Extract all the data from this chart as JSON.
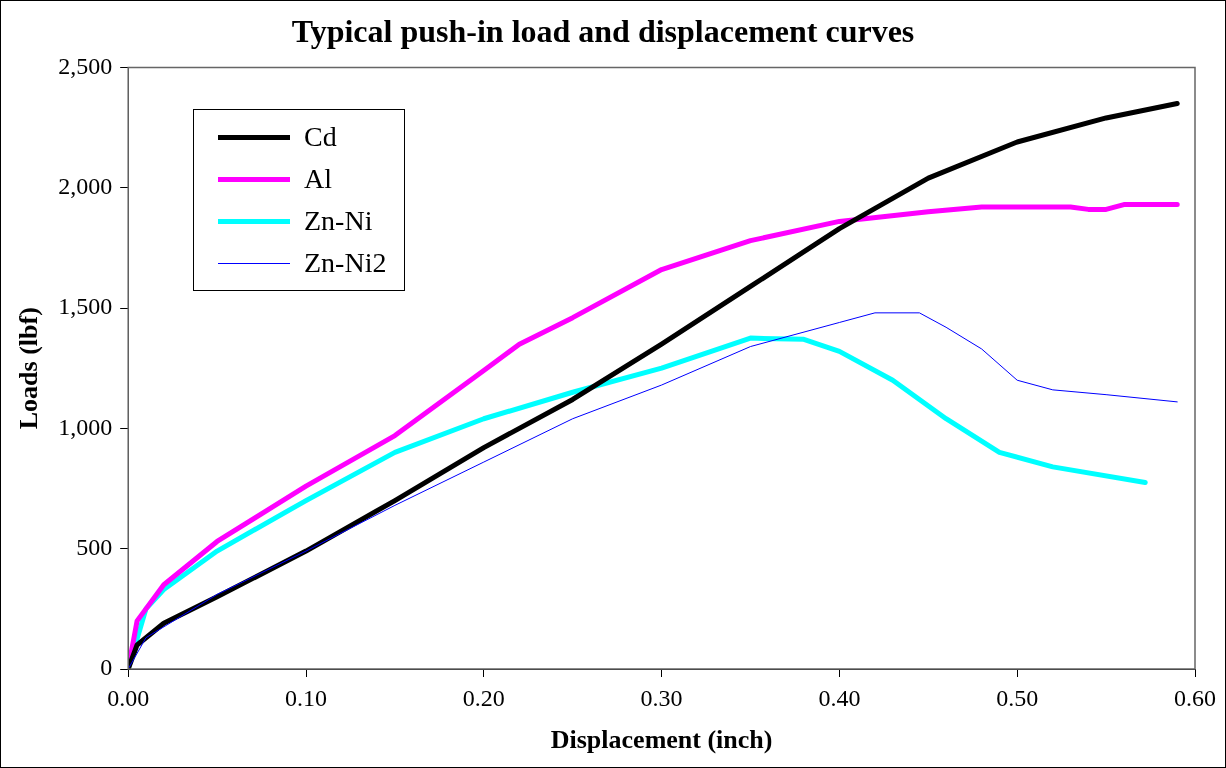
{
  "chart_data": {
    "type": "line",
    "title": "Typical push-in load and displacement curves",
    "xlabel": "Displacement (inch)",
    "ylabel": "Loads (lbf)",
    "xlim": [
      0,
      0.6
    ],
    "xticks": [
      {
        "value": 0,
        "label": "0.00"
      },
      {
        "value": 0.1,
        "label": "0.10"
      },
      {
        "value": 0.2,
        "label": "0.20"
      },
      {
        "value": 0.3,
        "label": "0.30"
      },
      {
        "value": 0.4,
        "label": "0.40"
      },
      {
        "value": 0.5,
        "label": "0.50"
      },
      {
        "value": 0.6,
        "label": "0.60"
      }
    ],
    "ylim": [
      0,
      2500
    ],
    "yticks": [
      0,
      500,
      {
        "value": 1000,
        "label": "1,000"
      },
      {
        "value": 1500,
        "label": "1,500"
      },
      {
        "value": 2000,
        "label": "2,000"
      },
      {
        "value": 2500,
        "label": "2,500"
      }
    ],
    "grid": false,
    "legend": "top left",
    "marker": "none",
    "line_style": "solid",
    "series": [
      {
        "name": "Cd",
        "color": "#000000",
        "x": [
          0,
          0.005,
          0.02,
          0.05,
          0.1,
          0.15,
          0.2,
          0.25,
          0.3,
          0.35,
          0.4,
          0.45,
          0.5,
          0.55,
          0.59
        ],
        "values": [
          0,
          100,
          190,
          300,
          490,
          700,
          920,
          1120,
          1350,
          1590,
          1830,
          2040,
          2190,
          2290,
          2350
        ]
      },
      {
        "name": "Al",
        "color": "#ff00ff",
        "x": [
          0,
          0.005,
          0.02,
          0.05,
          0.1,
          0.15,
          0.2,
          0.22,
          0.25,
          0.3,
          0.35,
          0.4,
          0.45,
          0.48,
          0.53,
          0.54,
          0.55,
          0.56,
          0.59
        ],
        "values": [
          0,
          200,
          350,
          530,
          760,
          970,
          1240,
          1350,
          1460,
          1660,
          1780,
          1860,
          1900,
          1920,
          1920,
          1910,
          1910,
          1930,
          1930
        ]
      },
      {
        "name": "Zn-Ni",
        "color": "#00ffff",
        "x": [
          0,
          0.01,
          0.02,
          0.05,
          0.1,
          0.15,
          0.2,
          0.25,
          0.3,
          0.35,
          0.38,
          0.4,
          0.43,
          0.46,
          0.49,
          0.52,
          0.572
        ],
        "values": [
          0,
          250,
          330,
          490,
          700,
          900,
          1040,
          1150,
          1250,
          1375,
          1370,
          1320,
          1200,
          1040,
          900,
          840,
          775
        ]
      },
      {
        "name": "Zn-Ni2",
        "color": "#0000ff",
        "x": [
          0,
          0.01,
          0.05,
          0.1,
          0.15,
          0.2,
          0.25,
          0.3,
          0.35,
          0.4,
          0.42,
          0.445,
          0.46,
          0.48,
          0.5,
          0.52,
          0.55,
          0.59
        ],
        "values": [
          0,
          130,
          310,
          490,
          680,
          860,
          1040,
          1180,
          1340,
          1440,
          1480,
          1480,
          1420,
          1330,
          1200,
          1160,
          1140,
          1110
        ]
      }
    ]
  }
}
